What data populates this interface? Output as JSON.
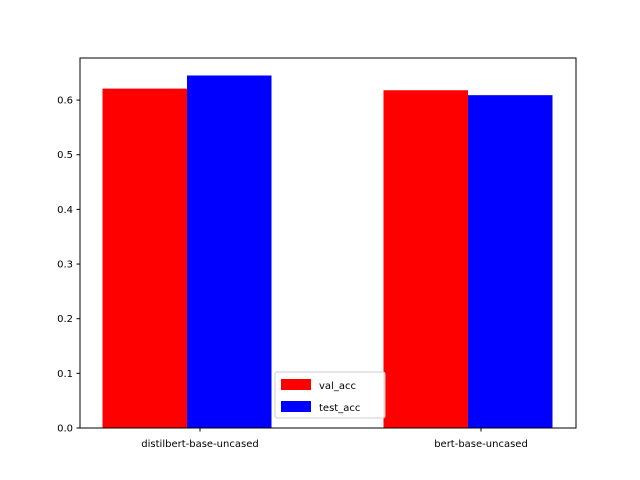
{
  "chart_data": {
    "type": "bar",
    "title": "",
    "xlabel": "",
    "ylabel": "",
    "categories": [
      "distilbert-base-uncased",
      "bert-base-uncased"
    ],
    "series": [
      {
        "name": "val_acc",
        "values": [
          0.621,
          0.618
        ],
        "color": "#ff0000"
      },
      {
        "name": "test_acc",
        "values": [
          0.645,
          0.609
        ],
        "color": "#0000ff"
      }
    ],
    "ylim": [
      0,
      0.677
    ],
    "yticks": [
      0.0,
      0.1,
      0.2,
      0.3,
      0.4,
      0.5,
      0.6
    ],
    "ytick_labels": [
      "0.0",
      "0.1",
      "0.2",
      "0.3",
      "0.4",
      "0.5",
      "0.6"
    ],
    "grid": false,
    "legend_position": "bottom-center"
  }
}
